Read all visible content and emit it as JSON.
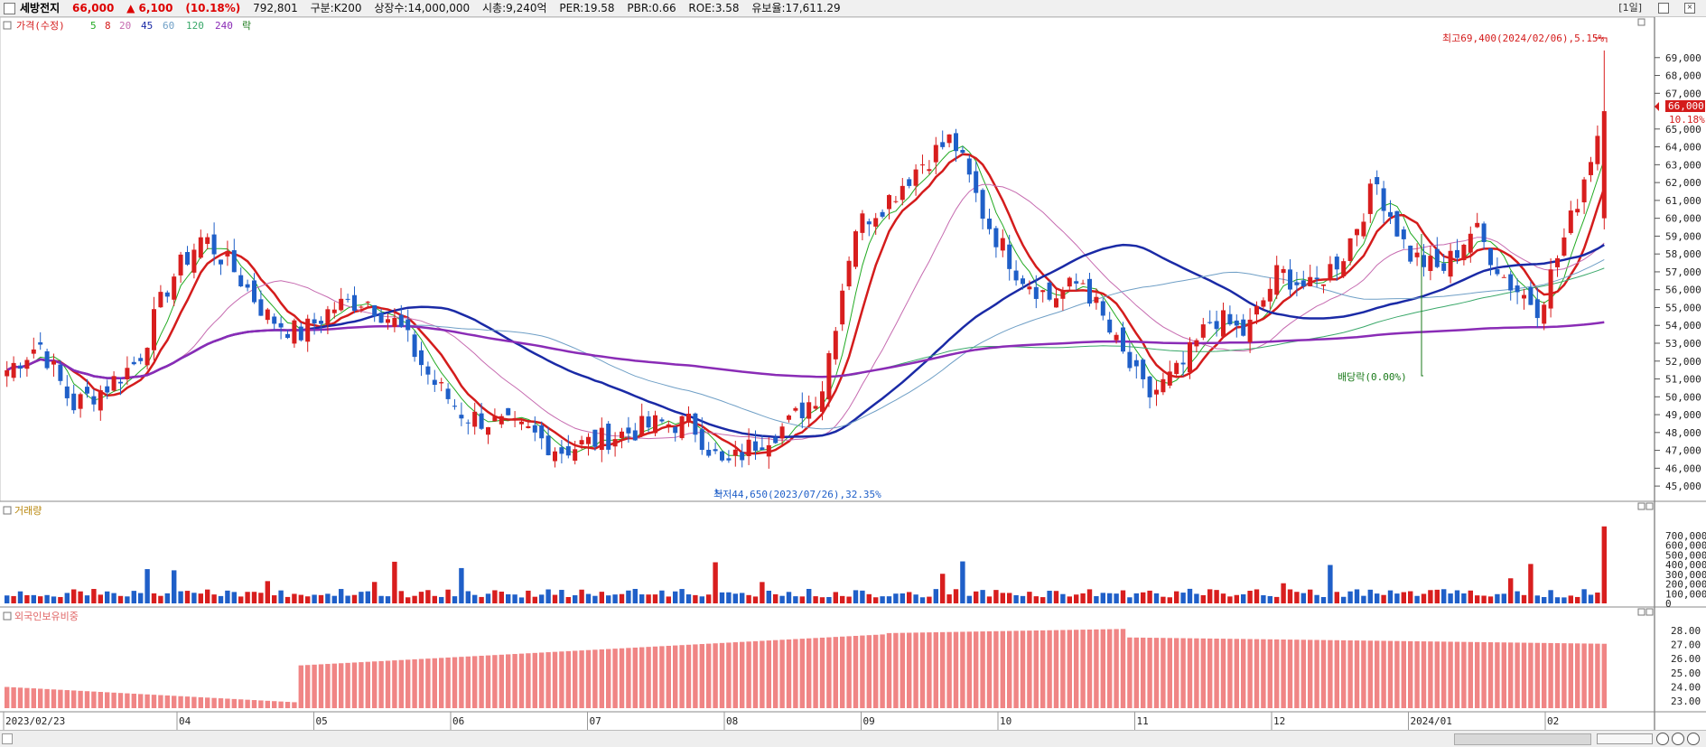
{
  "header": {
    "name": "세방전지",
    "price": "66,000",
    "change": "▲ 6,100",
    "change_pct": "(10.18%)",
    "volume": "792,801",
    "market": "구분:K200",
    "shares": "상장수:14,000,000",
    "mcap": "시총:9,240억",
    "per": "PER:19.58",
    "pbr": "PBR:0.66",
    "roe": "ROE:3.58",
    "float": "유보율:17,611.29",
    "period": "[1일]",
    "close_glyph": "×"
  },
  "legend": {
    "price": "가격(수정)",
    "ma": [
      "5",
      "8",
      "20",
      "45",
      "60",
      "120",
      "240"
    ],
    "ex": "락"
  },
  "colors": {
    "up": "#d81e1e",
    "down": "#1f5fc8",
    "ma5": "#22aa22",
    "ma8": "#d41c1c",
    "ma20": "#c66bb0",
    "ma45": "#1a2aa6",
    "ma60": "#6f9fc6",
    "ma120": "#3aa86a",
    "ma240": "#8a2cb6",
    "foreign_bar": "#f08585"
  },
  "annotations": {
    "high": "최고69,400(2024/02/06),5.15%",
    "low": "최저44,650(2023/07/26),32.35%",
    "dividend": "배당락(0.00%)"
  },
  "price_axis": {
    "ticks": [
      "69,000",
      "68,000",
      "67,000",
      "66,000",
      "65,000",
      "64,000",
      "63,000",
      "62,000",
      "61,000",
      "60,000",
      "59,000",
      "58,000",
      "57,000",
      "56,000",
      "55,000",
      "54,000",
      "53,000",
      "52,000",
      "51,000",
      "50,000",
      "49,000",
      "48,000",
      "47,000",
      "46,000",
      "45,000"
    ],
    "current": "66,000",
    "current_pct": "10.18%"
  },
  "volume_panel": {
    "title": "거래량",
    "ticks": [
      "700,000",
      "600,000",
      "500,000",
      "400,000",
      "300,000",
      "200,000",
      "100,000",
      "0"
    ]
  },
  "foreign_panel": {
    "title": "외국인보유비중",
    "ticks": [
      "28.00",
      "27.00",
      "26.00",
      "25.00",
      "24.00",
      "23.00"
    ]
  },
  "x_axis": {
    "labels": [
      "2023/02/23",
      "04",
      "05",
      "06",
      "07",
      "08",
      "09",
      "10",
      "11",
      "12",
      "2024/01",
      "02"
    ]
  },
  "chart_data": {
    "type": "candlestick",
    "x": [
      "2023/02/23",
      "04",
      "05",
      "06",
      "07",
      "08",
      "09",
      "10",
      "11",
      "12",
      "2024/01",
      "02"
    ],
    "closes": [
      51500,
      53000,
      49500,
      50500,
      52000,
      56500,
      59000,
      57000,
      54500,
      53500,
      55000,
      55500,
      54000,
      51000,
      49000,
      48500,
      48000,
      47000,
      47500,
      48000,
      48500,
      48500,
      46000,
      47500,
      48500,
      50500,
      59500,
      61000,
      63000,
      64500,
      60000,
      57000,
      55500,
      56500,
      53000,
      50000,
      51500,
      54500,
      53500,
      57000,
      56000,
      58000,
      62000,
      58000,
      57000,
      59500,
      56500,
      55000,
      60000,
      66000
    ],
    "price_ylim": [
      44500,
      70000
    ],
    "high_value": 69400,
    "low_value": 44650,
    "volume_ylim": [
      0,
      800000
    ],
    "last_volume": 792801,
    "foreign_ylim": [
      22500,
      28500
    ]
  }
}
